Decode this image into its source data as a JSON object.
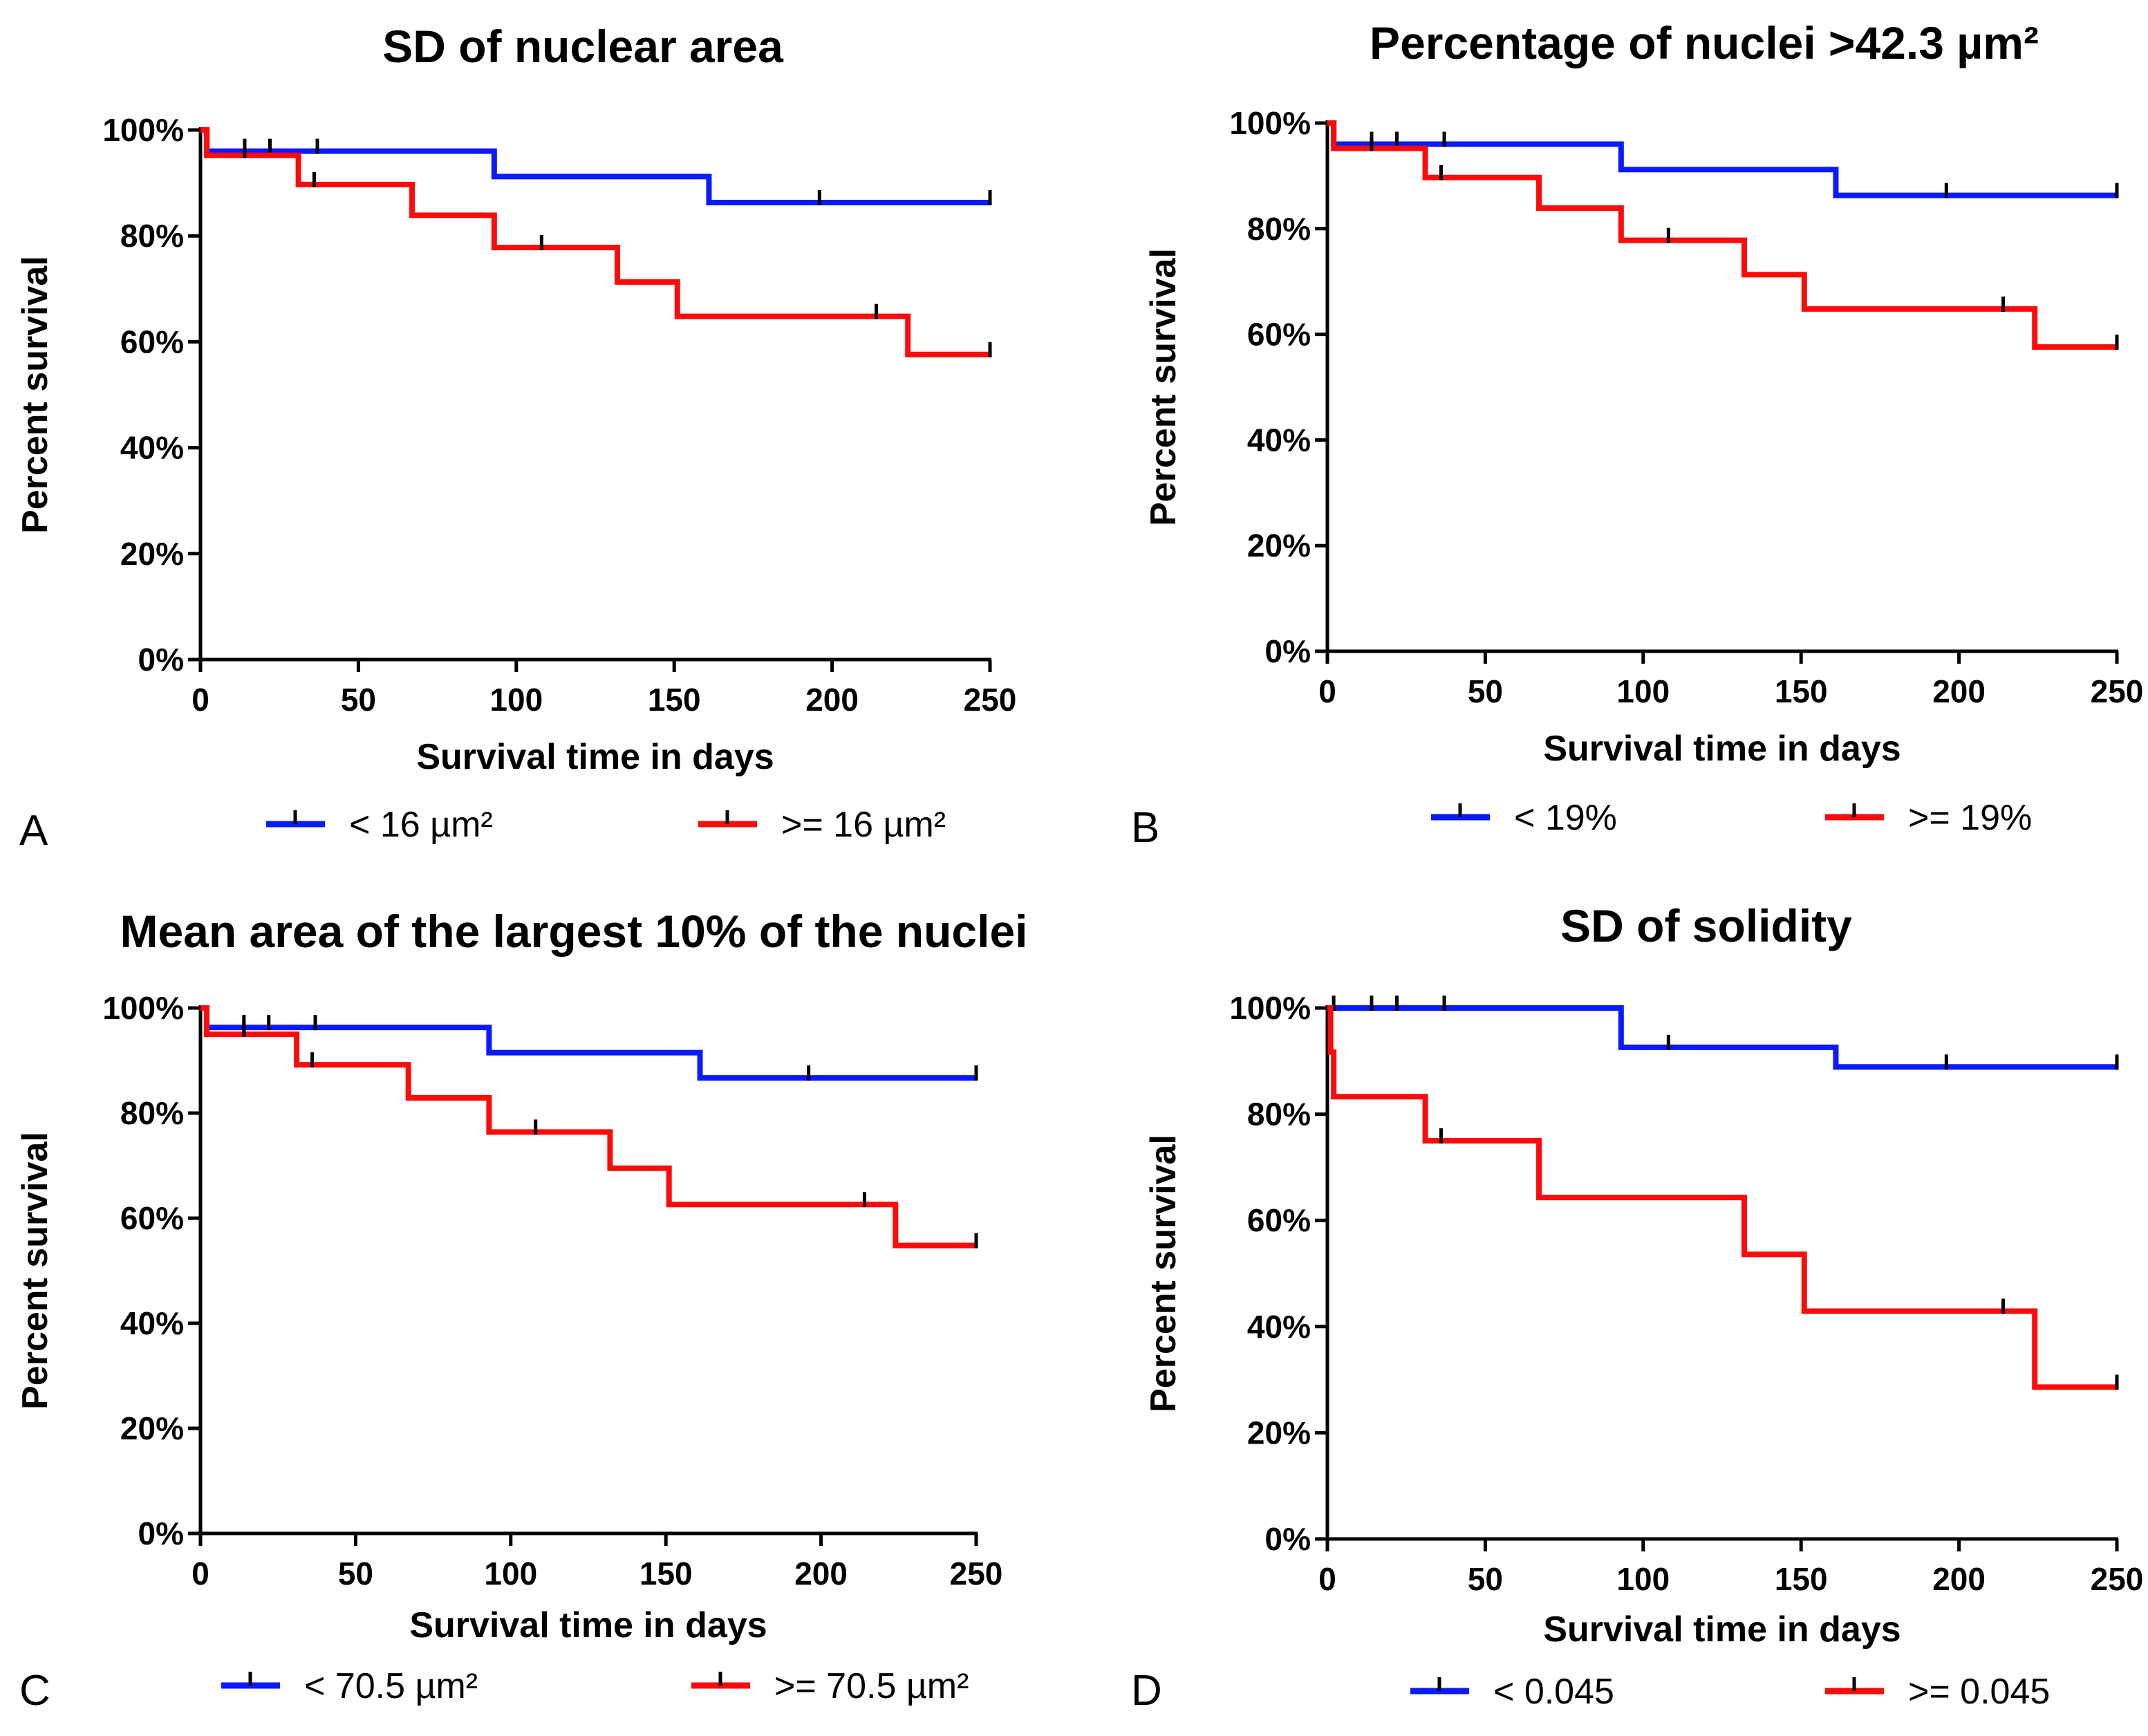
{
  "colors": {
    "blue": "#0a1aff",
    "red": "#ff0a0a",
    "axis": "#000000"
  },
  "chart_data": [
    {
      "type": "line",
      "panel_letter": "A",
      "title": "SD of nuclear area",
      "xlabel": "Survival time in days",
      "ylabel": "Percent survival",
      "xlim": [
        0,
        250
      ],
      "ylim": [
        0,
        100
      ],
      "xticks": [
        0,
        50,
        100,
        150,
        200,
        250
      ],
      "yticks": [
        "0%",
        "20%",
        "40%",
        "60%",
        "80%",
        "100%"
      ],
      "series": [
        {
          "name": "< 16 µm²",
          "color": "blue",
          "steps": [
            [
              0,
              100
            ],
            [
              2,
              96
            ],
            [
              93,
              91.2
            ],
            [
              161,
              86.3
            ],
            [
              250,
              86.3
            ]
          ],
          "censored": [
            [
              14,
              96
            ],
            [
              22,
              96
            ],
            [
              37,
              96
            ],
            [
              196,
              86.3
            ],
            [
              250,
              86.3
            ]
          ]
        },
        {
          "name": ">= 16 µm²",
          "color": "red",
          "steps": [
            [
              0,
              100
            ],
            [
              2,
              95.2
            ],
            [
              31,
              89.7
            ],
            [
              67,
              83.9
            ],
            [
              93,
              77.8
            ],
            [
              132,
              71.3
            ],
            [
              151,
              64.8
            ],
            [
              224,
              57.6
            ],
            [
              250,
              57.6
            ]
          ],
          "censored": [
            [
              14,
              95.2
            ],
            [
              36,
              89.7
            ],
            [
              108,
              77.8
            ],
            [
              214,
              64.8
            ],
            [
              250,
              57.6
            ]
          ]
        }
      ]
    },
    {
      "type": "line",
      "panel_letter": "B",
      "title": "Percentage of nuclei >42.3 µm²",
      "xlabel": "Survival time in days",
      "ylabel": "Percent survival",
      "xlim": [
        0,
        250
      ],
      "ylim": [
        0,
        100
      ],
      "xticks": [
        0,
        50,
        100,
        150,
        200,
        250
      ],
      "yticks": [
        "0%",
        "20%",
        "40%",
        "60%",
        "80%",
        "100%"
      ],
      "series": [
        {
          "name": "< 19%",
          "color": "blue",
          "steps": [
            [
              0,
              100
            ],
            [
              2,
              96
            ],
            [
              93,
              91.2
            ],
            [
              161,
              86.3
            ],
            [
              250,
              86.3
            ]
          ],
          "censored": [
            [
              14,
              96
            ],
            [
              22,
              96
            ],
            [
              37,
              96
            ],
            [
              196,
              86.3
            ],
            [
              250,
              86.3
            ]
          ]
        },
        {
          "name": ">= 19%",
          "color": "red",
          "steps": [
            [
              0,
              100
            ],
            [
              2,
              95.2
            ],
            [
              31,
              89.7
            ],
            [
              67,
              83.9
            ],
            [
              93,
              77.8
            ],
            [
              132,
              71.3
            ],
            [
              151,
              64.8
            ],
            [
              224,
              57.6
            ],
            [
              250,
              57.6
            ]
          ],
          "censored": [
            [
              14,
              95.2
            ],
            [
              36,
              89.7
            ],
            [
              108,
              77.8
            ],
            [
              214,
              64.8
            ],
            [
              250,
              57.6
            ]
          ]
        }
      ]
    },
    {
      "type": "line",
      "panel_letter": "C",
      "title": "Mean area of the largest 10% of the nuclei",
      "xlabel": "Survival time in days",
      "ylabel": "Percent survival",
      "xlim": [
        0,
        250
      ],
      "ylim": [
        0,
        100
      ],
      "xticks": [
        0,
        50,
        100,
        150,
        200,
        250
      ],
      "yticks": [
        "0%",
        "20%",
        "40%",
        "60%",
        "80%",
        "100%"
      ],
      "series": [
        {
          "name": "< 70.5 µm²",
          "color": "blue",
          "steps": [
            [
              0,
              100
            ],
            [
              2,
              96.3
            ],
            [
              93,
              91.5
            ],
            [
              161,
              86.7
            ],
            [
              250,
              86.7
            ]
          ],
          "censored": [
            [
              14,
              96.3
            ],
            [
              22,
              96.3
            ],
            [
              37,
              96.3
            ],
            [
              196,
              86.7
            ],
            [
              250,
              86.7
            ]
          ]
        },
        {
          "name": ">= 70.5 µm²",
          "color": "red",
          "steps": [
            [
              0,
              100
            ],
            [
              2,
              95
            ],
            [
              31,
              89.2
            ],
            [
              67,
              82.9
            ],
            [
              93,
              76.4
            ],
            [
              132,
              69.5
            ],
            [
              151,
              62.6
            ],
            [
              224,
              54.8
            ],
            [
              250,
              54.8
            ]
          ],
          "censored": [
            [
              14,
              95
            ],
            [
              36,
              89.2
            ],
            [
              108,
              76.4
            ],
            [
              214,
              62.6
            ],
            [
              250,
              54.8
            ]
          ]
        }
      ]
    },
    {
      "type": "line",
      "panel_letter": "D",
      "title": "SD of solidity",
      "xlabel": "Survival time in days",
      "ylabel": "Percent survival",
      "xlim": [
        0,
        250
      ],
      "ylim": [
        0,
        100
      ],
      "xticks": [
        0,
        50,
        100,
        150,
        200,
        250
      ],
      "yticks": [
        "0%",
        "20%",
        "40%",
        "60%",
        "80%",
        "100%"
      ],
      "series": [
        {
          "name": "< 0.045",
          "color": "blue",
          "steps": [
            [
              0,
              100
            ],
            [
              93,
              92.6
            ],
            [
              161,
              88.9
            ],
            [
              250,
              88.9
            ]
          ],
          "censored": [
            [
              2,
              100
            ],
            [
              14,
              100
            ],
            [
              22,
              100
            ],
            [
              37,
              100
            ],
            [
              108,
              92.6
            ],
            [
              196,
              88.9
            ],
            [
              250,
              88.9
            ]
          ]
        },
        {
          "name": ">= 0.045",
          "color": "red",
          "steps": [
            [
              0,
              100
            ],
            [
              1,
              91.7
            ],
            [
              2,
              83.3
            ],
            [
              31,
              75
            ],
            [
              67,
              64.3
            ],
            [
              132,
              53.6
            ],
            [
              151,
              42.9
            ],
            [
              224,
              28.6
            ],
            [
              250,
              28.6
            ]
          ],
          "censored": [
            [
              36,
              75
            ],
            [
              214,
              42.9
            ],
            [
              250,
              28.6
            ]
          ]
        }
      ]
    }
  ]
}
